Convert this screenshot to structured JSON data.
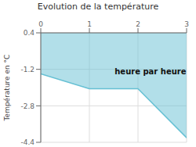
{
  "chart_data": {
    "type": "line",
    "title": "Evolution de la température",
    "ylabel": "Température en °C",
    "x": [
      0,
      1,
      2,
      3
    ],
    "series": [
      {
        "name": "Température",
        "color": "#66c0d4",
        "values": [
          -1.4,
          -2.05,
          -2.05,
          -4.2
        ]
      }
    ],
    "xlim": [
      0,
      3
    ],
    "xticks": [
      0,
      1,
      2,
      3
    ],
    "ylim": [
      -4.4,
      0.4
    ],
    "yticks": [
      0.4,
      -1.2,
      -2.8,
      -4.4
    ],
    "grid": true,
    "annotations": [
      {
        "text": "heure par heure",
        "x": 1.52,
        "y": -1.1
      }
    ]
  }
}
